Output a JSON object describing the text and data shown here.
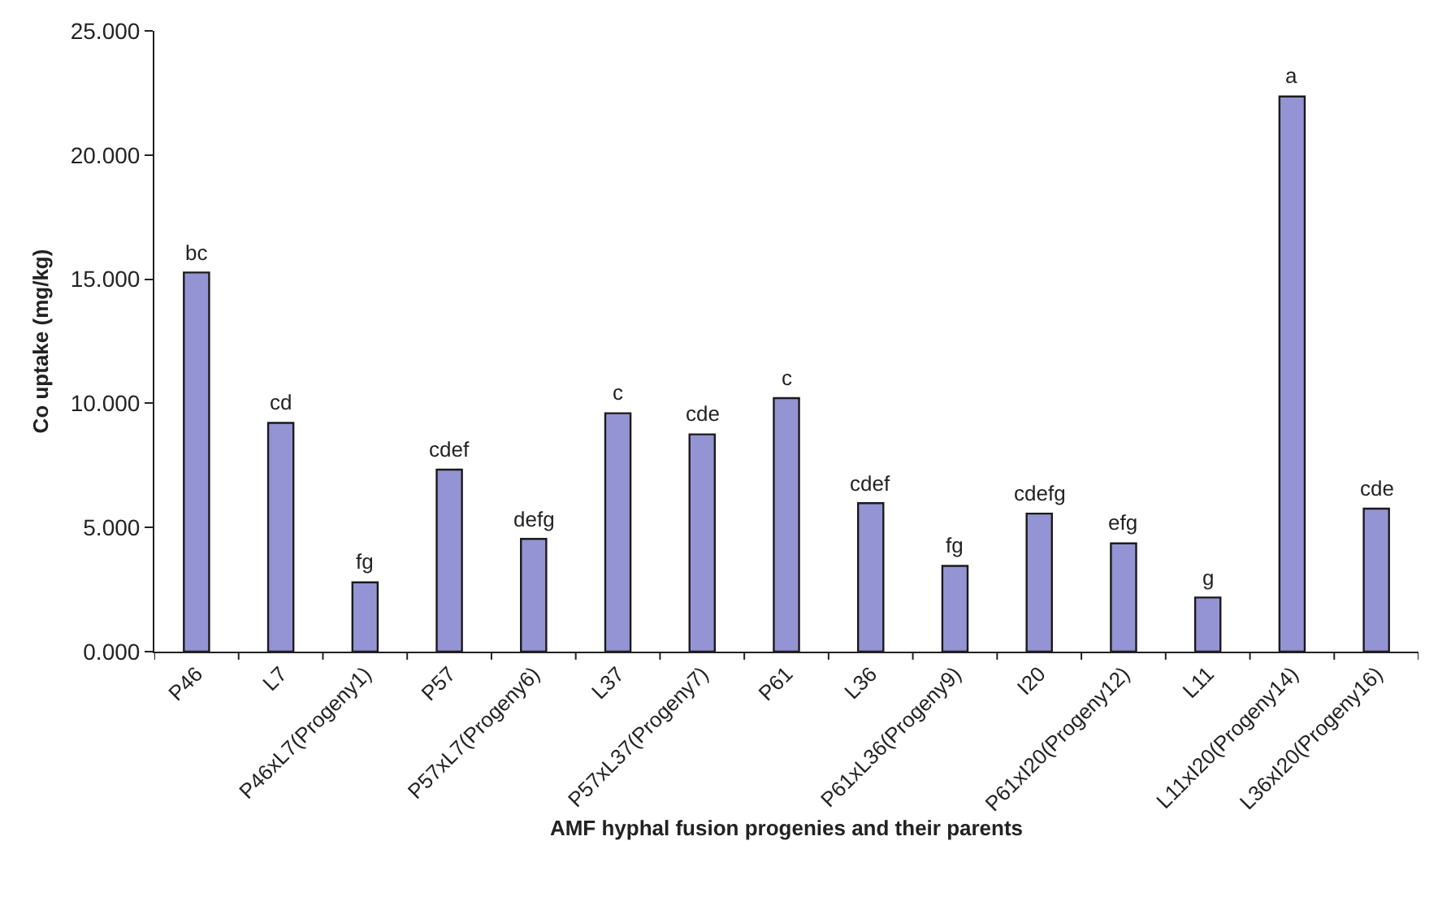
{
  "chart_data": {
    "type": "bar",
    "xlabel": "AMF hyphal fusion progenies and their parents",
    "ylabel": "Co uptake (mg/kg)",
    "categories": [
      "P46",
      "L7",
      "P46xL7(Progeny1)",
      "P57",
      "P57xL7(Progeny6)",
      "L37",
      "P57xL37(Progeny7)",
      "P61",
      "L36",
      "P61xL36(Progeny9)",
      "I20",
      "P61xI20(Progeny12)",
      "L11",
      "L11xI20(Progeny14)",
      "L36xI20(Progeny16)"
    ],
    "values": [
      15.27,
      9.21,
      2.79,
      7.33,
      4.54,
      9.6,
      8.75,
      10.21,
      5.98,
      3.45,
      5.56,
      4.36,
      2.18,
      22.36,
      5.76
    ],
    "color": "#9494d4",
    "ylim": [
      0,
      25
    ],
    "yticks": [
      {
        "value": 0,
        "label": "0.000"
      },
      {
        "value": 5,
        "label": "5.000"
      },
      {
        "value": 10,
        "label": "10.000"
      },
      {
        "value": 15,
        "label": "15.000"
      },
      {
        "value": 20,
        "label": "20.000"
      },
      {
        "value": 25,
        "label": "25.000"
      }
    ],
    "annotations": [
      {
        "text": "bc",
        "x": "P46",
        "y": 15.27
      },
      {
        "text": "cd",
        "x": "L7",
        "y": 9.21
      },
      {
        "text": "fg",
        "x": "P46xL7(Progeny1)",
        "y": 2.79
      },
      {
        "text": "cdef",
        "x": "P57",
        "y": 7.33
      },
      {
        "text": "defg",
        "x": "P57xL7(Progeny6)",
        "y": 4.54
      },
      {
        "text": "c",
        "x": "L37",
        "y": 9.6
      },
      {
        "text": "cde",
        "x": "P57xL37(Progeny7)",
        "y": 8.75
      },
      {
        "text": "c",
        "x": "P61",
        "y": 10.21
      },
      {
        "text": "cdef",
        "x": "L36",
        "y": 5.98
      },
      {
        "text": "fg",
        "x": "P61xL36(Progeny9)",
        "y": 3.45
      },
      {
        "text": "cdefg",
        "x": "I20",
        "y": 5.56
      },
      {
        "text": "efg",
        "x": "P61xI20(Progeny12)",
        "y": 4.36
      },
      {
        "text": "g",
        "x": "L11",
        "y": 2.18
      },
      {
        "text": "a",
        "x": "L11xI20(Progeny14)",
        "y": 22.36
      },
      {
        "text": "cde",
        "x": "L36xI20(Progeny16)",
        "y": 5.76
      }
    ],
    "grid": false,
    "legend": false
  }
}
